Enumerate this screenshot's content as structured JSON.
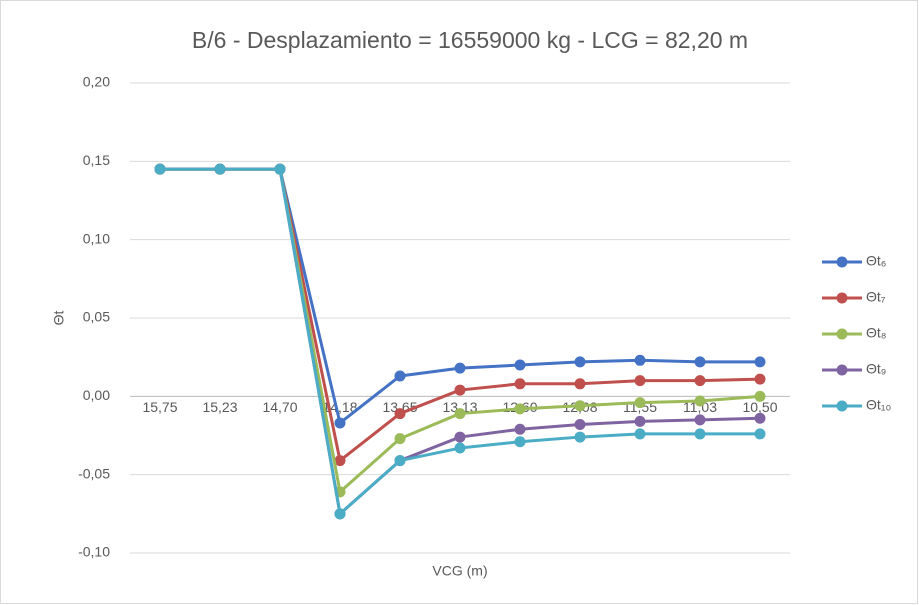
{
  "chart_data": {
    "type": "line",
    "title": "B/6 - Desplazamiento = 16559000 kg - LCG = 82,20 m",
    "x_label": "VCG (m)",
    "y_label": "Θt",
    "categories": [
      "15,75",
      "15,23",
      "14,70",
      "14,18",
      "13,65",
      "13,13",
      "12,60",
      "12,08",
      "11,55",
      "11,03",
      "10,50"
    ],
    "series": [
      {
        "name": "Θt₆",
        "color": "#4472c4",
        "values": [
          0.145,
          0.145,
          0.145,
          -0.017,
          0.013,
          0.018,
          0.02,
          0.022,
          0.023,
          0.022,
          0.022
        ]
      },
      {
        "name": "Θt₇",
        "color": "#c0504d",
        "values": [
          0.145,
          0.145,
          0.145,
          -0.041,
          -0.011,
          0.004,
          0.008,
          0.008,
          0.01,
          0.01,
          0.011
        ]
      },
      {
        "name": "Θt₈",
        "color": "#9bbb59",
        "values": [
          0.145,
          0.145,
          0.145,
          -0.061,
          -0.027,
          -0.011,
          -0.008,
          -0.006,
          -0.004,
          -0.003,
          0.0
        ]
      },
      {
        "name": "Θt₉",
        "color": "#8064a2",
        "values": [
          0.145,
          0.145,
          0.145,
          -0.075,
          -0.041,
          -0.026,
          -0.021,
          -0.018,
          -0.016,
          -0.015,
          -0.014
        ]
      },
      {
        "name": "Θt₁₀",
        "color": "#4bacc6",
        "values": [
          0.145,
          0.145,
          0.145,
          -0.075,
          -0.041,
          -0.033,
          -0.029,
          -0.026,
          -0.024,
          -0.024,
          -0.024
        ]
      }
    ],
    "ylim": [
      -0.1,
      0.2
    ],
    "yticks": [
      {
        "value": -0.1,
        "label": "-0,10"
      },
      {
        "value": -0.05,
        "label": "-0,05"
      },
      {
        "value": 0,
        "label": "0,00"
      },
      {
        "value": 0.05,
        "label": "0,05"
      },
      {
        "value": 0.1,
        "label": "0,10"
      },
      {
        "value": 0.15,
        "label": "0,15"
      },
      {
        "value": 0.2,
        "label": "0,20"
      }
    ],
    "grid": true,
    "legend": "right"
  }
}
